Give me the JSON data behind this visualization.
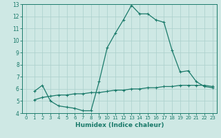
{
  "line1_x": [
    1,
    2,
    3,
    4,
    5,
    6,
    7,
    8,
    9,
    10,
    11,
    12,
    13,
    14,
    15,
    16,
    17,
    18,
    19,
    20,
    21,
    22,
    23
  ],
  "line1_y": [
    5.8,
    6.3,
    5.0,
    4.6,
    4.5,
    4.4,
    4.2,
    4.2,
    6.6,
    9.4,
    10.6,
    11.7,
    12.9,
    12.2,
    12.2,
    11.7,
    11.5,
    9.2,
    7.4,
    7.5,
    6.6,
    6.2,
    6.1
  ],
  "line2_x": [
    1,
    2,
    3,
    4,
    5,
    6,
    7,
    8,
    9,
    10,
    11,
    12,
    13,
    14,
    15,
    16,
    17,
    18,
    19,
    20,
    21,
    22,
    23
  ],
  "line2_y": [
    5.1,
    5.3,
    5.4,
    5.5,
    5.5,
    5.6,
    5.6,
    5.7,
    5.7,
    5.8,
    5.9,
    5.9,
    6.0,
    6.0,
    6.1,
    6.1,
    6.2,
    6.2,
    6.3,
    6.3,
    6.3,
    6.3,
    6.2
  ],
  "line_color": "#1a7a6a",
  "marker": "+",
  "markersize": 3,
  "linewidth": 0.9,
  "markeredgewidth": 0.8,
  "xlabel": "Humidex (Indice chaleur)",
  "xlim": [
    -0.5,
    23.5
  ],
  "ylim": [
    4,
    13
  ],
  "yticks": [
    4,
    5,
    6,
    7,
    8,
    9,
    10,
    11,
    12,
    13
  ],
  "xticks": [
    0,
    1,
    2,
    3,
    4,
    5,
    6,
    7,
    8,
    9,
    10,
    11,
    12,
    13,
    14,
    15,
    16,
    17,
    18,
    19,
    20,
    21,
    22,
    23
  ],
  "bg_color": "#cee8e4",
  "grid_color": "#aacfcb",
  "tick_color": "#1a7a6a",
  "label_color": "#1a7a6a",
  "axis_color": "#1a7a6a",
  "xlabel_fontsize": 6.5,
  "tick_fontsize_x": 5.0,
  "tick_fontsize_y": 5.5
}
